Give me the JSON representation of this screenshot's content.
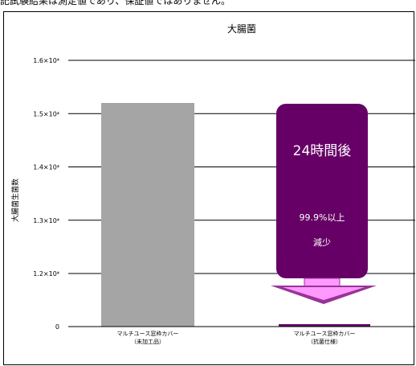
{
  "header": {
    "caption": "記試験結果は測定値であり、保証値ではありません。"
  },
  "chart_data": {
    "type": "bar",
    "title": "大腸菌",
    "xlabel": "",
    "ylabel": "大腸菌生菌数",
    "ylim": [
      11300,
      16500
    ],
    "y_axis_break": true,
    "ticks": [
      {
        "value": 0,
        "label": "0"
      },
      {
        "value": 12000,
        "label": "1.2×10⁴"
      },
      {
        "value": 13000,
        "label": "1.3×10⁴"
      },
      {
        "value": 14000,
        "label": "1.4×10⁴"
      },
      {
        "value": 15000,
        "label": "1.5×10⁴"
      },
      {
        "value": 16000,
        "label": "1.6×10⁴"
      }
    ],
    "grid": true,
    "categories": [
      {
        "line1": "マルチユース窓枠カバー",
        "line2": "（未加工品）"
      },
      {
        "line1": "マルチユース窓枠カバー",
        "line2": "（抗菌仕様）"
      }
    ],
    "values": [
      15200,
      10
    ],
    "colors": {
      "bar_untreated": "#a5a5a5",
      "bar_treated": "#660066",
      "callout": "#660066",
      "arrow": "#ff99ff",
      "arrow_head": "#993399",
      "grid": "#000000"
    },
    "annotation": {
      "heading": "24時間後",
      "line1": "99.9%以上",
      "line2": "減少"
    }
  }
}
